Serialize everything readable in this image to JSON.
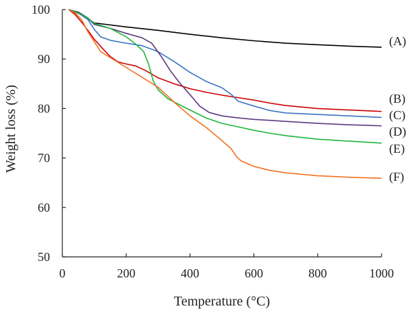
{
  "chart_data": {
    "type": "line",
    "title": "",
    "xlabel": "Temperature (°C)",
    "ylabel": "Weight loss (%)",
    "xlim": [
      0,
      1000
    ],
    "ylim": [
      50,
      100
    ],
    "x_ticks": [
      0,
      200,
      400,
      600,
      800,
      1000
    ],
    "y_ticks": [
      50,
      60,
      70,
      80,
      90,
      100
    ],
    "grid": false,
    "series": [
      {
        "name": "(A)",
        "color": "#000000",
        "points": [
          [
            20,
            100
          ],
          [
            60,
            99
          ],
          [
            100,
            97.3
          ],
          [
            200,
            96.5
          ],
          [
            300,
            95.8
          ],
          [
            400,
            95
          ],
          [
            500,
            94.3
          ],
          [
            600,
            93.7
          ],
          [
            700,
            93.2
          ],
          [
            800,
            92.9
          ],
          [
            900,
            92.6
          ],
          [
            1000,
            92.4
          ]
        ]
      },
      {
        "name": "(B)",
        "color": "#cc0000",
        "points": [
          [
            20,
            100
          ],
          [
            40,
            99
          ],
          [
            60,
            97.5
          ],
          [
            80,
            95.8
          ],
          [
            100,
            94
          ],
          [
            125,
            92.2
          ],
          [
            150,
            90.5
          ],
          [
            175,
            89.4
          ],
          [
            200,
            89
          ],
          [
            230,
            88.6
          ],
          [
            260,
            87.7
          ],
          [
            300,
            86.2
          ],
          [
            350,
            85
          ],
          [
            400,
            84
          ],
          [
            450,
            83.3
          ],
          [
            500,
            82.7
          ],
          [
            550,
            82.2
          ],
          [
            600,
            81.7
          ],
          [
            650,
            81.1
          ],
          [
            700,
            80.6
          ],
          [
            800,
            80
          ],
          [
            900,
            79.7
          ],
          [
            1000,
            79.4
          ]
        ]
      },
      {
        "name": "(C)",
        "color": "#3a74c4",
        "points": [
          [
            20,
            100
          ],
          [
            50,
            99.3
          ],
          [
            80,
            98
          ],
          [
            100,
            96
          ],
          [
            120,
            94.5
          ],
          [
            150,
            93.8
          ],
          [
            200,
            93.2
          ],
          [
            250,
            92.7
          ],
          [
            300,
            91.5
          ],
          [
            350,
            89.5
          ],
          [
            400,
            87.3
          ],
          [
            450,
            85.5
          ],
          [
            500,
            84.2
          ],
          [
            530,
            82.8
          ],
          [
            550,
            81.5
          ],
          [
            600,
            80.5
          ],
          [
            650,
            79.6
          ],
          [
            700,
            79.1
          ],
          [
            800,
            78.8
          ],
          [
            900,
            78.5
          ],
          [
            1000,
            78.2
          ]
        ]
      },
      {
        "name": "(D)",
        "color": "#5b3a80",
        "points": [
          [
            20,
            100
          ],
          [
            50,
            99.5
          ],
          [
            80,
            98.3
          ],
          [
            100,
            97
          ],
          [
            150,
            96.2
          ],
          [
            200,
            95.2
          ],
          [
            250,
            94.3
          ],
          [
            280,
            93.2
          ],
          [
            310,
            90.5
          ],
          [
            340,
            87.5
          ],
          [
            370,
            85
          ],
          [
            400,
            82.8
          ],
          [
            430,
            80.5
          ],
          [
            460,
            79.2
          ],
          [
            500,
            78.5
          ],
          [
            550,
            78.1
          ],
          [
            600,
            77.8
          ],
          [
            650,
            77.6
          ],
          [
            700,
            77.4
          ],
          [
            800,
            77
          ],
          [
            900,
            76.7
          ],
          [
            1000,
            76.5
          ]
        ]
      },
      {
        "name": "(E)",
        "color": "#1db53a",
        "points": [
          [
            20,
            100
          ],
          [
            50,
            99.3
          ],
          [
            80,
            98.3
          ],
          [
            100,
            97.2
          ],
          [
            150,
            96.2
          ],
          [
            200,
            94.5
          ],
          [
            230,
            93
          ],
          [
            255,
            91.5
          ],
          [
            270,
            89
          ],
          [
            285,
            85.5
          ],
          [
            300,
            83.8
          ],
          [
            330,
            82
          ],
          [
            360,
            81
          ],
          [
            400,
            79.7
          ],
          [
            450,
            78.1
          ],
          [
            500,
            77
          ],
          [
            550,
            76.3
          ],
          [
            600,
            75.6
          ],
          [
            650,
            75
          ],
          [
            700,
            74.5
          ],
          [
            800,
            73.8
          ],
          [
            900,
            73.4
          ],
          [
            1000,
            73
          ]
        ]
      },
      {
        "name": "(F)",
        "color": "#f07020",
        "points": [
          [
            20,
            100
          ],
          [
            40,
            99.3
          ],
          [
            60,
            98
          ],
          [
            80,
            95.5
          ],
          [
            100,
            93.5
          ],
          [
            120,
            91.5
          ],
          [
            150,
            90.3
          ],
          [
            200,
            88.3
          ],
          [
            250,
            86.3
          ],
          [
            300,
            84.3
          ],
          [
            350,
            81.3
          ],
          [
            400,
            78.5
          ],
          [
            450,
            76.2
          ],
          [
            500,
            73.5
          ],
          [
            530,
            71.8
          ],
          [
            545,
            70.3
          ],
          [
            560,
            69.4
          ],
          [
            600,
            68.3
          ],
          [
            650,
            67.5
          ],
          [
            700,
            67
          ],
          [
            800,
            66.4
          ],
          [
            900,
            66.1
          ],
          [
            1000,
            65.9
          ]
        ]
      }
    ]
  }
}
